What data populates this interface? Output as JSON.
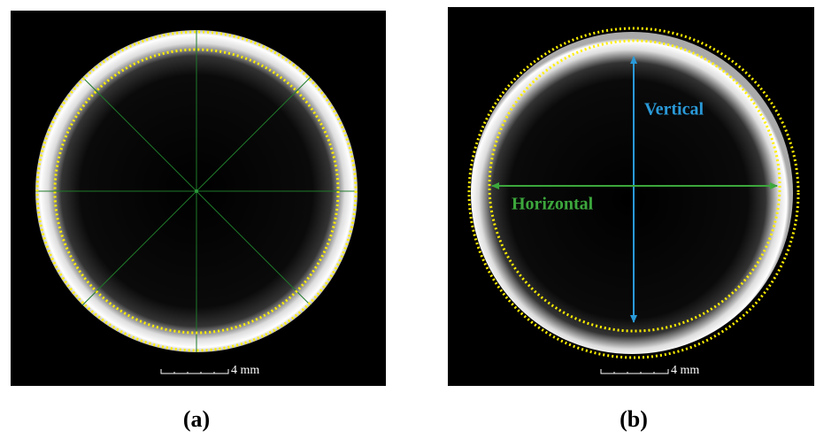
{
  "panels": [
    {
      "label": "(a)",
      "scale_bar": "4 mm"
    },
    {
      "label": "(b)",
      "scale_bar": "4 mm",
      "annotations": {
        "vertical": "Vertical",
        "horizontal": "Horizontal"
      }
    }
  ]
}
